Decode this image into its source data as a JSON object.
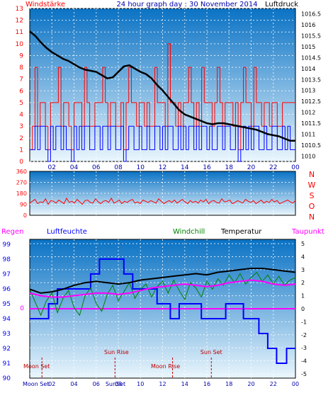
{
  "header": {
    "title": "24 hour graph day : 30 November 2014",
    "left_label": "Windstärke",
    "right_label": "Luftdruck"
  },
  "colors": {
    "panel_top": "#0a72c4",
    "panel_bottom": "#eaf6fd",
    "wind_gust": "#ff0000",
    "wind_avg": "#0000ff",
    "pressure": "#000000",
    "direction": "#ff0000",
    "humidity": "#0000ff",
    "windchill": "#008000",
    "temperature": "#000000",
    "dewpoint": "#ff00ff",
    "rain": "#ff00ff",
    "astro": "#c00000"
  },
  "chart_data": [
    {
      "type": "line",
      "title": "24 hour graph day : 30 November 2014",
      "x_ticks": [
        "02",
        "04",
        "06",
        "08",
        "10",
        "12",
        "14",
        "16",
        "18",
        "20",
        "22",
        "00"
      ],
      "y_left_label": "Windstärke",
      "y_left_ticks": [
        0,
        1,
        2,
        3,
        4,
        5,
        6,
        7,
        8,
        9,
        10,
        11,
        12,
        13
      ],
      "y_left_range": [
        0,
        13
      ],
      "y_right_label": "Luftdruck",
      "y_right_ticks": [
        "1010",
        "1010.5",
        "1011",
        "1011.5",
        "1012",
        "1012.5",
        "1013",
        "1013.5",
        "1014",
        "1014.5",
        "1015",
        "1015.5",
        "1016",
        "1016.5"
      ],
      "y_right_range": [
        1009.75,
        1016.75
      ],
      "series": [
        {
          "name": "Windstärke Böen",
          "color": "#ff0000",
          "values": [
            1,
            3,
            8,
            3,
            5,
            5,
            3,
            1,
            5,
            5,
            5,
            8,
            3,
            5,
            5,
            3,
            1,
            5,
            5,
            5,
            3,
            8,
            5,
            3,
            3,
            5,
            5,
            5,
            8,
            5,
            3,
            5,
            5,
            3,
            3,
            5,
            1,
            5,
            8,
            5,
            5,
            3,
            5,
            5,
            3,
            5,
            3,
            3,
            8,
            5,
            5,
            5,
            3,
            10,
            5,
            5,
            3,
            5,
            3,
            5,
            5,
            8,
            5,
            3,
            5,
            3,
            8,
            5,
            5,
            5,
            3,
            5,
            8,
            5,
            3,
            5,
            5,
            5,
            3,
            5,
            1,
            5,
            8,
            5,
            5,
            3,
            8,
            5,
            5,
            3,
            5,
            5,
            3,
            5,
            5,
            3,
            3,
            5,
            5,
            5,
            5,
            5
          ]
        },
        {
          "name": "Windstärke Mittel",
          "color": "#0000ff",
          "values": [
            1,
            1,
            3,
            1,
            3,
            3,
            1,
            0,
            3,
            1,
            3,
            3,
            1,
            3,
            1,
            1,
            0,
            3,
            1,
            3,
            1,
            3,
            3,
            1,
            1,
            3,
            3,
            1,
            3,
            3,
            1,
            3,
            3,
            1,
            1,
            3,
            0,
            1,
            3,
            3,
            1,
            1,
            3,
            1,
            1,
            3,
            1,
            1,
            3,
            3,
            1,
            3,
            1,
            3,
            3,
            1,
            1,
            3,
            1,
            3,
            1,
            3,
            3,
            1,
            3,
            1,
            3,
            3,
            1,
            3,
            1,
            1,
            3,
            3,
            1,
            3,
            3,
            1,
            1,
            3,
            0,
            1,
            3,
            1,
            3,
            1,
            3,
            3,
            1,
            1,
            3,
            1,
            1,
            3,
            3,
            1,
            1,
            3,
            1,
            3,
            1,
            1
          ]
        },
        {
          "name": "Luftdruck",
          "color": "#000000",
          "x": [
            0,
            0.5,
            1,
            1.5,
            2,
            2.5,
            3,
            3.5,
            4,
            4.5,
            5,
            5.5,
            6,
            6.5,
            7,
            7.5,
            8,
            8.5,
            9,
            9.5,
            10,
            10.5,
            11,
            11.5,
            12,
            12.5,
            13,
            13.5,
            14,
            14.5,
            15,
            15.5,
            16,
            16.5,
            17,
            17.5,
            18,
            18.5,
            19,
            19.5,
            20,
            20.5,
            21,
            21.5,
            22,
            22.5,
            23,
            23.5,
            24
          ],
          "values": [
            1015.7,
            1015.5,
            1015.2,
            1014.95,
            1014.75,
            1014.6,
            1014.45,
            1014.35,
            1014.2,
            1014.05,
            1013.95,
            1013.9,
            1013.85,
            1013.7,
            1013.55,
            1013.6,
            1013.85,
            1014.1,
            1014.15,
            1014.0,
            1013.85,
            1013.75,
            1013.55,
            1013.25,
            1013.0,
            1012.7,
            1012.4,
            1012.1,
            1011.9,
            1011.8,
            1011.7,
            1011.6,
            1011.5,
            1011.45,
            1011.5,
            1011.5,
            1011.45,
            1011.4,
            1011.35,
            1011.3,
            1011.25,
            1011.2,
            1011.1,
            1011.0,
            1010.95,
            1010.9,
            1010.8,
            1010.7,
            1010.7
          ]
        }
      ]
    },
    {
      "type": "line",
      "y_ticks": [
        "360",
        "270",
        "180",
        "90",
        "0"
      ],
      "y_range": [
        0,
        360
      ],
      "compass_labels": [
        "N",
        "W",
        "S",
        "O",
        "N"
      ],
      "series": [
        {
          "name": "Windrichtung",
          "color": "#ff0000",
          "values": [
            100,
            115,
            130,
            95,
            110,
            105,
            135,
            90,
            120,
            115,
            100,
            125,
            110,
            95,
            140,
            105,
            115,
            100,
            130,
            110,
            90,
            120,
            125,
            105,
            100,
            135,
            110,
            95,
            115,
            120,
            105,
            140,
            100,
            110,
            125,
            95,
            115,
            105,
            120,
            130,
            100,
            110,
            95,
            125,
            115,
            105,
            120,
            110,
            100,
            135,
            115,
            95,
            110,
            120,
            105,
            125,
            100,
            115,
            130,
            110,
            95,
            120,
            105,
            115,
            100,
            125,
            110,
            130,
            95,
            115,
            120,
            105,
            100,
            135,
            110,
            115,
            125,
            95,
            105,
            120,
            110,
            100,
            130,
            115,
            105,
            120,
            95,
            110,
            125,
            100,
            115,
            105,
            130,
            110,
            120,
            95,
            105,
            115,
            125,
            110,
            100,
            120
          ]
        }
      ]
    },
    {
      "type": "line",
      "labels": {
        "rain": "Regen",
        "humidity": "Luftfeuchte",
        "windchill": "Windchill",
        "temperature": "Temperatur",
        "dewpoint": "Taupunkt"
      },
      "x_ticks": [
        "02",
        "04",
        "06",
        "08",
        "10",
        "12",
        "14",
        "16",
        "18",
        "20",
        "22",
        "00"
      ],
      "y_left_ticks": [
        90,
        91,
        92,
        93,
        94,
        95,
        96,
        97,
        98,
        99
      ],
      "y_left_range": [
        90,
        99.33
      ],
      "y_right_ticks": [
        -5,
        -4,
        -3,
        -2,
        -1,
        0,
        1,
        2,
        3,
        4,
        5
      ],
      "y_right_range": [
        -5.33,
        5.33
      ],
      "rain_value": "0",
      "astro": {
        "moon_set_1": "Moon Set",
        "sun_rise": "Sun Rise",
        "moon_rise": "Moon Rise",
        "sun_set": "Sun Set",
        "moon_set_2": "Moon Set",
        "sun_set_2": "SunSet",
        "moon_set_2_time": 1.1,
        "sun_rise_time": 7.7,
        "moon_rise_time": 12.9,
        "sun_set_time": 16.4
      },
      "series": [
        {
          "name": "Luftfeuchte",
          "color": "#0000ff",
          "step": true,
          "x": [
            0,
            1.7,
            2.5,
            5.5,
            6.3,
            8.5,
            9.3,
            11.5,
            12.5,
            12.7,
            13.5,
            15.5,
            17.7,
            18.9,
            19.3,
            20.7,
            21.5,
            22.3,
            23.2,
            24
          ],
          "values": [
            94,
            95,
            96,
            97,
            98,
            97,
            96,
            95,
            95,
            94,
            95,
            94,
            95,
            95,
            94,
            93,
            92,
            91,
            92,
            92
          ]
        },
        {
          "name": "Temperatur",
          "color": "#000000",
          "x": [
            0,
            1,
            2,
            3,
            4,
            5,
            6,
            7,
            8,
            9,
            10,
            11,
            12,
            13,
            14,
            15,
            16,
            17,
            18,
            19,
            20,
            21,
            22,
            23,
            24
          ],
          "values": [
            1.5,
            1.2,
            1.3,
            1.5,
            1.8,
            2,
            2.1,
            2,
            1.9,
            2,
            2.2,
            2.3,
            2.4,
            2.5,
            2.6,
            2.7,
            2.6,
            2.8,
            2.9,
            3,
            3.1,
            3.1,
            3.0,
            2.9,
            2.8
          ]
        },
        {
          "name": "Taupunkt",
          "color": "#ff00ff",
          "x": [
            0,
            1,
            2,
            3,
            4,
            5,
            6,
            7,
            8,
            9,
            10,
            11,
            12,
            13,
            14,
            15,
            16,
            17,
            18,
            19,
            20,
            21,
            22,
            23,
            24
          ],
          "values": [
            1.2,
            1.0,
            0.9,
            0.9,
            1.0,
            1.1,
            1.2,
            1.2,
            1.1,
            1.2,
            1.4,
            1.6,
            1.7,
            1.8,
            1.9,
            1.8,
            1.7,
            1.8,
            2.0,
            2.1,
            2.2,
            2.1,
            1.9,
            1.8,
            1.9
          ]
        },
        {
          "name": "Windchill",
          "color": "#008000",
          "x": [
            0,
            0.5,
            1,
            1.5,
            2,
            2.5,
            3,
            3.5,
            4,
            4.5,
            5,
            5.5,
            6,
            6.5,
            7,
            7.5,
            8,
            8.5,
            9,
            9.5,
            10,
            10.5,
            11,
            11.5,
            12,
            12.5,
            13,
            13.5,
            14,
            14.5,
            15,
            15.5,
            16,
            16.5,
            17,
            17.5,
            18,
            18.5,
            19,
            19.5,
            20,
            20.5,
            21,
            21.5,
            22,
            22.5,
            23,
            23.5,
            24
          ],
          "values": [
            1.5,
            0.5,
            -0.5,
            0.6,
            1.2,
            -0.3,
            0.8,
            1.4,
            0.1,
            -0.5,
            1.0,
            1.6,
            0.4,
            -0.2,
            1.1,
            1.8,
            0.6,
            1.3,
            2.0,
            0.8,
            1.5,
            1.9,
            0.9,
            1.7,
            2.1,
            1.2,
            2.2,
            1.4,
            0.7,
            2.0,
            1.6,
            0.9,
            2.1,
            1.5,
            2.3,
            1.8,
            2.6,
            2.0,
            2.7,
            1.9,
            2.4,
            2.8,
            2.1,
            2.6,
            1.9,
            2.5,
            1.8,
            2.2,
            2.4
          ]
        }
      ]
    }
  ]
}
